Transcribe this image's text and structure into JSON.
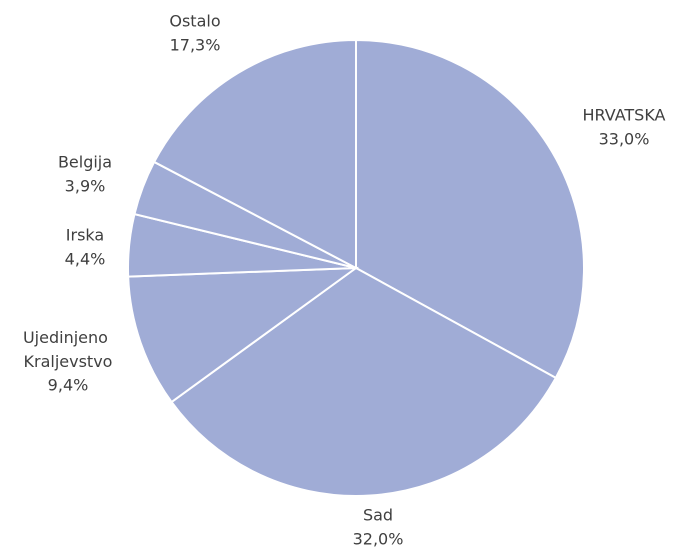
{
  "chart_data": {
    "type": "pie",
    "categories": [
      "HRVATSKA",
      "Sad",
      "Ujedinjeno Kraljevstvo",
      "Irska",
      "Belgija",
      "Ostalo"
    ],
    "values": [
      33.0,
      32.0,
      9.4,
      4.4,
      3.9,
      17.3
    ],
    "value_labels": [
      "33,0%",
      "32,0%",
      "9,4%",
      "4,4%",
      "3,9%",
      "17,3%"
    ],
    "color": "#a0acd6"
  }
}
